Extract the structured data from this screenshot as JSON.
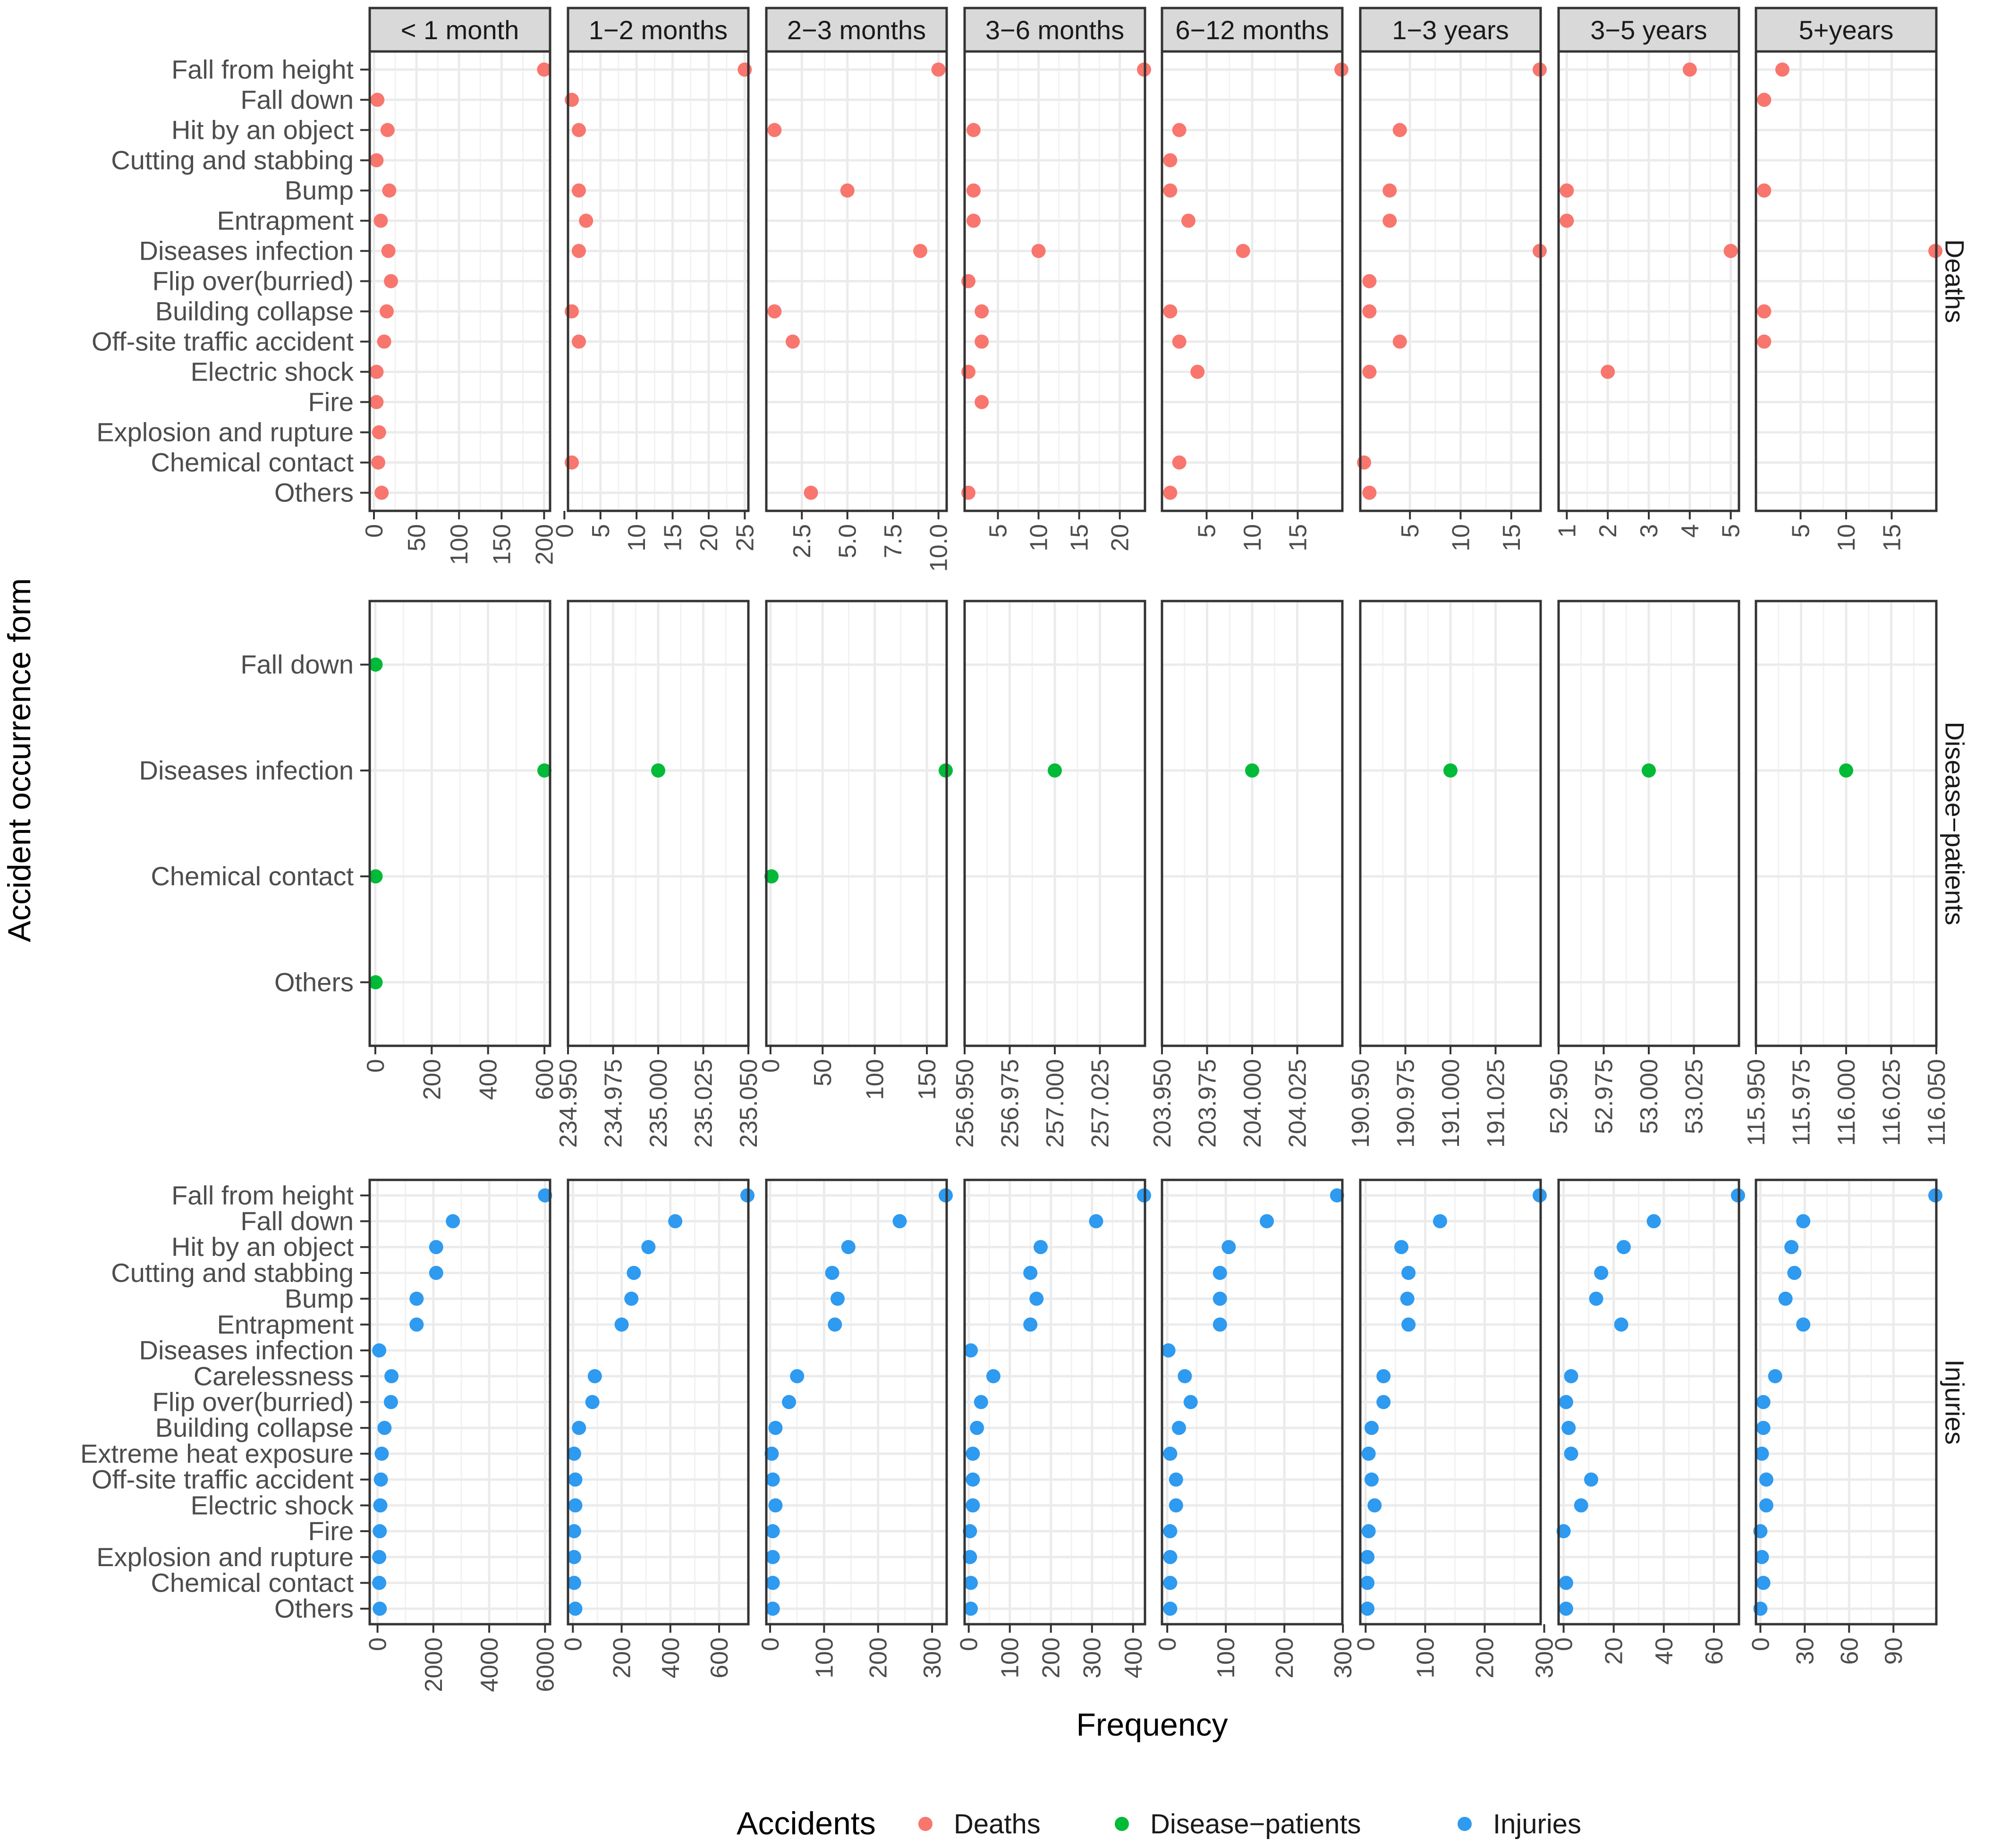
{
  "chart_data": {
    "type": "scatter",
    "xlabel": "Frequency",
    "ylabel": "Accident occurrence form",
    "legend": {
      "title": "Accidents",
      "position": "bottom",
      "entries": [
        {
          "label": "Deaths",
          "color": "#F8766D"
        },
        {
          "label": "Disease−patients",
          "color": "#00BA38"
        },
        {
          "label": "Injuries",
          "color": "#2E9AF0"
        }
      ]
    },
    "columns": [
      "< 1 month",
      "1−2 months",
      "2−3 months",
      "3−6 months",
      "6−12 months",
      "1−3 years",
      "3−5 years",
      "5+years"
    ],
    "rows": [
      {
        "label": "Deaths",
        "color": "#F8766D",
        "categories": [
          "Fall from height",
          "Fall down",
          "Hit by an object",
          "Cutting and stabbing",
          "Bump",
          "Entrapment",
          "Diseases infection",
          "Flip over(burried)",
          "Building collapse",
          "Off-site traffic accident",
          "Electric shock",
          "Fire",
          "Explosion and rupture",
          "Chemical  contact",
          "Others"
        ],
        "panels": [
          {
            "xlim": [
              -5,
              207
            ],
            "ticks": [
              0,
              50,
              100,
              150,
              200
            ],
            "values": [
              200,
              4,
              16,
              3,
              18,
              8,
              17,
              20,
              15,
              12,
              3,
              3,
              6,
              5,
              9
            ]
          },
          {
            "xlim": [
              0.5,
              25.5
            ],
            "ticks": [
              0,
              5,
              10,
              15,
              20,
              25
            ],
            "values": [
              25,
              1,
              2,
              null,
              2,
              3,
              2,
              null,
              1,
              2,
              null,
              null,
              null,
              1,
              null
            ]
          },
          {
            "xlim": [
              0.55,
              10.45
            ],
            "ticks": [
              2.5,
              5.0,
              7.5,
              10.0
            ],
            "tick_labels": [
              "2.5",
              "5.0",
              "7.5",
              "10.0"
            ],
            "values": [
              10,
              null,
              1,
              null,
              5,
              null,
              9,
              null,
              1,
              2,
              null,
              null,
              null,
              null,
              3
            ]
          },
          {
            "xlim": [
              0.9,
              23.1
            ],
            "ticks": [
              5,
              10,
              15,
              20
            ],
            "values": [
              23,
              null,
              2,
              null,
              2,
              2,
              10,
              1,
              3,
              3,
              1,
              3,
              null,
              null,
              1
            ]
          },
          {
            "xlim": [
              0.1,
              19.9
            ],
            "ticks": [
              5,
              10,
              15
            ],
            "values": [
              20,
              null,
              2,
              1,
              1,
              3,
              9,
              null,
              1,
              2,
              4,
              null,
              null,
              2,
              1
            ]
          },
          {
            "xlim": [
              0.1,
              17.9
            ],
            "ticks": [
              5,
              10,
              15
            ],
            "values": [
              18,
              null,
              4,
              null,
              3,
              3,
              18,
              1,
              1,
              4,
              1,
              null,
              null,
              0,
              1
            ]
          },
          {
            "xlim": [
              0.8,
              5.2
            ],
            "ticks": [
              1,
              2,
              3,
              4,
              5
            ],
            "values": [
              4,
              null,
              null,
              null,
              1,
              1,
              5,
              null,
              null,
              null,
              2,
              null,
              null,
              null,
              null
            ]
          },
          {
            "xlim": [
              0.1,
              19.9
            ],
            "ticks": [
              5,
              10,
              15
            ],
            "values": [
              3,
              1,
              null,
              null,
              1,
              null,
              20,
              null,
              1,
              1,
              null,
              null,
              null,
              null,
              null
            ]
          }
        ]
      },
      {
        "label": "Disease−patients",
        "color": "#00BA38",
        "categories": [
          "Fall down",
          "Diseases infection",
          "Chemical  contact",
          "Others"
        ],
        "panels": [
          {
            "xlim": [
              -20,
              620
            ],
            "ticks": [
              0,
              200,
              400,
              600
            ],
            "values": [
              1,
              600,
              1,
              1
            ]
          },
          {
            "xlim": [
              234.95,
              235.05
            ],
            "ticks": [
              234.95,
              234.975,
              235.0,
              235.025,
              235.05
            ],
            "tick_labels": [
              "234.950",
              "234.975",
              "235.000",
              "235.025",
              "235.050"
            ],
            "values": [
              null,
              235,
              null,
              null
            ]
          },
          {
            "xlim": [
              -4,
              169
            ],
            "ticks": [
              0,
              50,
              100,
              150
            ],
            "values": [
              null,
              169,
              1,
              null
            ]
          },
          {
            "xlim": [
              256.95,
              257.05
            ],
            "ticks": [
              256.95,
              256.975,
              257.0,
              257.025
            ],
            "tick_labels": [
              "256.950",
              "256.975",
              "257.000",
              "257.025"
            ],
            "values": [
              null,
              257,
              null,
              null
            ]
          },
          {
            "xlim": [
              203.95,
              204.05
            ],
            "ticks": [
              203.95,
              203.975,
              204.0,
              204.025
            ],
            "tick_labels": [
              "203.950",
              "203.975",
              "204.000",
              "204.025"
            ],
            "values": [
              null,
              204,
              null,
              null
            ]
          },
          {
            "xlim": [
              190.95,
              191.05
            ],
            "ticks": [
              190.95,
              190.975,
              191.0,
              191.025
            ],
            "tick_labels": [
              "190.950",
              "190.975",
              "191.000",
              "191.025"
            ],
            "values": [
              null,
              191,
              null,
              null
            ]
          },
          {
            "xlim": [
              52.95,
              53.05
            ],
            "ticks": [
              52.95,
              52.975,
              53.0,
              53.025
            ],
            "tick_labels": [
              "52.950",
              "52.975",
              "53.000",
              "53.025"
            ],
            "values": [
              null,
              53,
              null,
              null
            ]
          },
          {
            "xlim": [
              115.95,
              116.05
            ],
            "ticks": [
              115.95,
              115.975,
              116.0,
              116.025,
              116.05
            ],
            "tick_labels": [
              "115.950",
              "115.975",
              "116.000",
              "116.025",
              "116.050"
            ],
            "values": [
              null,
              116,
              null,
              null
            ]
          }
        ]
      },
      {
        "label": "Injuries",
        "color": "#2E9AF0",
        "categories": [
          "Fall from height",
          "Fall down",
          "Hit by an object",
          "Cutting and stabbing",
          "Bump",
          "Entrapment",
          "Diseases infection",
          "Carelessness",
          "Flip over(burried)",
          "Building collapse",
          "Extreme heat exposure",
          "Off-site traffic accident",
          "Electric shock",
          "Fire",
          "Explosion and rupture",
          "Chemical  contact",
          "Others"
        ],
        "panels": [
          {
            "xlim": [
              -280,
              6180
            ],
            "ticks": [
              0,
              2000,
              4000,
              6000
            ],
            "values": [
              6000,
              2700,
              2100,
              2100,
              1400,
              1400,
              60,
              500,
              480,
              250,
              150,
              120,
              100,
              80,
              60,
              60,
              80
            ]
          },
          {
            "xlim": [
              -20,
              720
            ],
            "ticks": [
              0,
              200,
              400,
              600
            ],
            "values": [
              720,
              420,
              310,
              250,
              240,
              200,
              null,
              90,
              80,
              25,
              5,
              10,
              10,
              5,
              5,
              5,
              10
            ]
          },
          {
            "xlim": [
              -7,
              327
            ],
            "ticks": [
              0,
              100,
              200,
              300
            ],
            "values": [
              327,
              240,
              145,
              115,
              125,
              120,
              null,
              50,
              35,
              10,
              3,
              5,
              10,
              5,
              5,
              5,
              5
            ]
          },
          {
            "xlim": [
              -10,
              429
            ],
            "ticks": [
              0,
              100,
              200,
              300,
              400
            ],
            "values": [
              429,
              310,
              175,
              150,
              165,
              150,
              5,
              60,
              30,
              20,
              10,
              10,
              10,
              3,
              3,
              5,
              5
            ]
          },
          {
            "xlim": [
              -9,
              299
            ],
            "ticks": [
              0,
              100,
              200,
              300
            ],
            "values": [
              290,
              170,
              105,
              90,
              90,
              90,
              2,
              30,
              40,
              20,
              5,
              15,
              15,
              5,
              5,
              5,
              5
            ]
          },
          {
            "xlim": [
              -9,
              294
            ],
            "ticks": [
              0,
              100,
              200,
              300
            ],
            "values": [
              294,
              125,
              60,
              72,
              70,
              72,
              null,
              30,
              30,
              10,
              5,
              10,
              15,
              5,
              3,
              3,
              3
            ]
          },
          {
            "xlim": [
              -2,
              70
            ],
            "ticks": [
              0,
              20,
              40,
              60
            ],
            "values": [
              70,
              36,
              24,
              15,
              13,
              23,
              null,
              3,
              1,
              2,
              3,
              11,
              7,
              0,
              null,
              1,
              1
            ]
          },
          {
            "xlim": [
              -3,
              119
            ],
            "ticks": [
              0,
              30,
              60,
              90
            ],
            "values": [
              119,
              29,
              21,
              23,
              17,
              29,
              null,
              10,
              2,
              2,
              1,
              4,
              4,
              0,
              1,
              2,
              0
            ]
          }
        ]
      }
    ]
  }
}
